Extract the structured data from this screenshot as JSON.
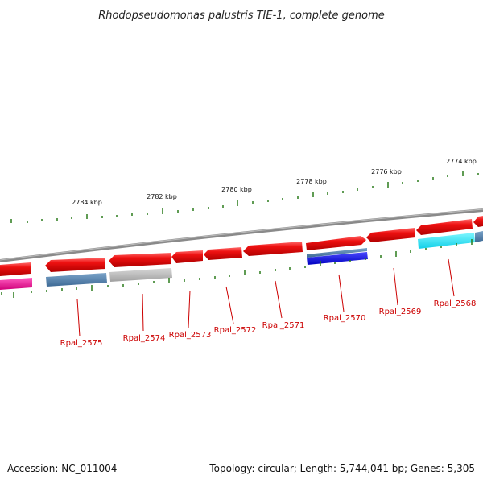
{
  "title": "Rhodopseudomonas palustris TIE-1, complete genome",
  "footer": {
    "accession": "Accession: NC_011004",
    "summary": "Topology: circular; Length: 5,744,041 bp; Genes: 5,305"
  },
  "kbp_labels": [
    "2784 kbp",
    "2782 kbp",
    "2780 kbp",
    "2778 kbp",
    "2776 kbp",
    "2774 kbp"
  ],
  "gene_labels": [
    "Rpal_2575",
    "Rpal_2574",
    "Rpal_2573",
    "Rpal_2572",
    "Rpal_2571",
    "Rpal_2570",
    "Rpal_2569",
    "Rpal_2568"
  ],
  "colors": {
    "gene_forward": "#ee1111",
    "tick": "#2a7a1a",
    "backbone": "#8a8a8a",
    "label": "#cc0000",
    "feature_steelblue": "#4a7aa8",
    "feature_gray": "#b0b0b0",
    "feature_blue": "#1010dd",
    "feature_cyan": "#18e0f0",
    "feature_magenta": "#ee1199"
  }
}
